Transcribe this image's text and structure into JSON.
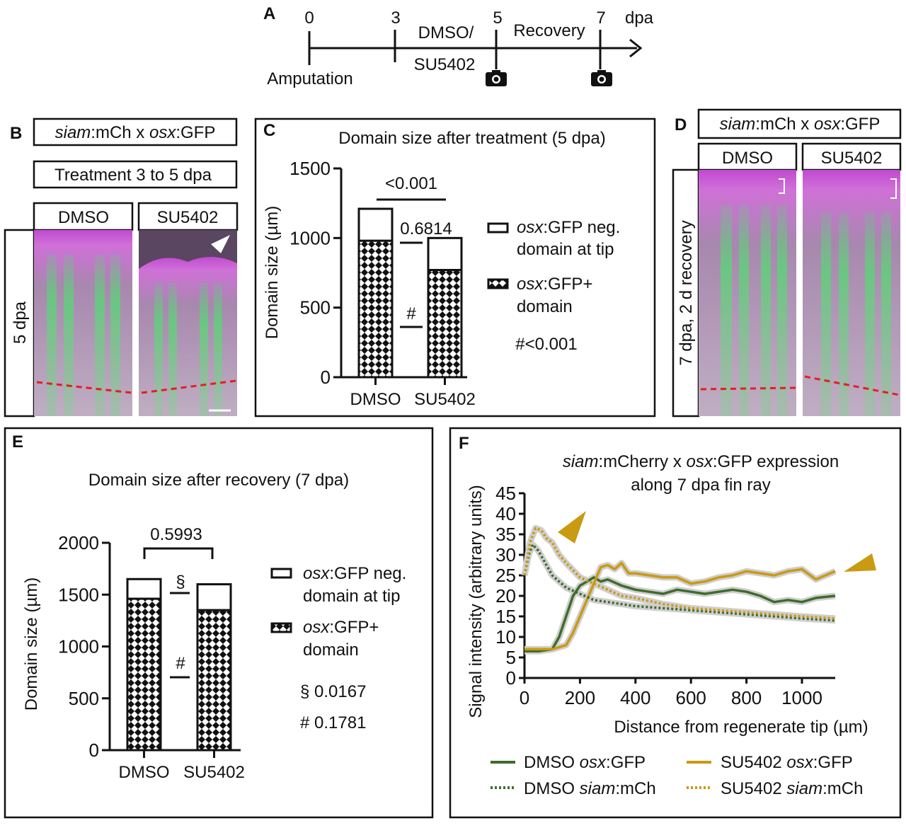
{
  "panelA": {
    "label": "A",
    "ticks": [
      "0",
      "3",
      "5",
      "7"
    ],
    "unit": "dpa",
    "treatment_line1": "DMSO/",
    "treatment_line2": "SU5402",
    "recovery": "Recovery",
    "amputation": "Amputation",
    "icons": [
      "camera-icon",
      "camera-icon"
    ]
  },
  "panelB": {
    "label": "B",
    "genotype": {
      "a": "siam",
      "b": ":mCh x ",
      "c": "osx",
      "d": ":GFP"
    },
    "treatment": "Treatment 3 to 5 dpa",
    "columns": [
      "DMSO",
      "SU5402"
    ],
    "row_label": "5 dpa"
  },
  "panelD": {
    "label": "D",
    "genotype": {
      "a": "siam",
      "b": ":mCh x ",
      "c": "osx",
      "d": ":GFP"
    },
    "columns": [
      "DMSO",
      "SU5402"
    ],
    "row_label": "7 dpa, 2 d recovery"
  },
  "colors": {
    "gfp_dmso": "#3f6b2c",
    "gfp_su": "#c99a12",
    "band": "#cfcfcf"
  },
  "chart_data": [
    {
      "id": "C",
      "label": "C",
      "type": "bar",
      "stacked": true,
      "title": "Domain size after treatment (5 dpa)",
      "ylabel": "Domain size (µm)",
      "ylim": [
        0,
        1500
      ],
      "yticks": [
        "0",
        "500",
        "1000",
        "1500"
      ],
      "categories": [
        "DMSO",
        "SU5402"
      ],
      "series": [
        {
          "name": "osx:GFP+ domain",
          "values": [
            980,
            770
          ]
        },
        {
          "name": "osx:GFP neg. domain at tip",
          "values": [
            230,
            230
          ]
        }
      ],
      "legend": [
        {
          "italic": "osx",
          "rest": ":GFP neg.",
          "line2": "domain at tip"
        },
        {
          "italic": "osx",
          "rest": ":GFP+",
          "line2": "domain"
        }
      ],
      "annotations": {
        "total_p": "<0.001",
        "neg_p": "0.6814",
        "hash": "#",
        "footnote": "#<0.001"
      }
    },
    {
      "id": "E",
      "label": "E",
      "type": "bar",
      "stacked": true,
      "title": "Domain size after recovery (7 dpa)",
      "ylabel": "Domain size (µm)",
      "ylim": [
        0,
        2000
      ],
      "yticks": [
        "0",
        "500",
        "1000",
        "1500",
        "2000"
      ],
      "categories": [
        "DMSO",
        "SU5402"
      ],
      "series": [
        {
          "name": "osx:GFP+ domain",
          "values": [
            1460,
            1350
          ]
        },
        {
          "name": "osx:GFP neg. domain at tip",
          "values": [
            190,
            250
          ]
        }
      ],
      "legend": [
        {
          "italic": "osx",
          "rest": ":GFP neg.",
          "line2": "domain at tip"
        },
        {
          "italic": "osx",
          "rest": ":GFP+",
          "line2": "domain"
        }
      ],
      "annotations": {
        "total_p": "0.5993",
        "section": "§",
        "hash": "#",
        "foot1": "§ 0.0167",
        "foot2": "# 0.1781"
      }
    },
    {
      "id": "F",
      "label": "F",
      "type": "line",
      "title_italic": "siam",
      "title_a": ":mCherry x ",
      "title_italic2": "osx",
      "title_b": ":GFP expression",
      "title_line2": "along 7 dpa fin ray",
      "xlabel": "Distance from regenerate tip (µm)",
      "ylabel": "Signal intensity (arbitrary units)",
      "xlim": [
        0,
        1120
      ],
      "ylim": [
        0,
        45
      ],
      "xticks": [
        "0",
        "200",
        "400",
        "600",
        "800",
        "1000"
      ],
      "yticks": [
        "0",
        "5",
        "10",
        "15",
        "20",
        "25",
        "30",
        "35",
        "40",
        "45"
      ],
      "series": [
        {
          "name": "DMSO osx:GFP",
          "legend_a": "DMSO ",
          "legend_i": "osx",
          "legend_b": ":GFP",
          "style": "solid",
          "color": "#3f6b2c",
          "x": [
            0,
            50,
            100,
            125,
            150,
            175,
            200,
            225,
            250,
            275,
            300,
            350,
            400,
            450,
            500,
            550,
            600,
            650,
            700,
            750,
            800,
            850,
            900,
            950,
            1000,
            1050,
            1120
          ],
          "y": [
            6.5,
            6.5,
            7,
            10,
            15,
            20,
            22.5,
            23.5,
            24.5,
            23.5,
            24,
            22.5,
            21.5,
            21,
            20.5,
            21.5,
            21,
            20.5,
            21,
            21.5,
            21,
            20,
            18.5,
            19,
            18.5,
            19.5,
            20
          ]
        },
        {
          "name": "SU5402 osx:GFP",
          "legend_a": "SU5402 ",
          "legend_i": "osx",
          "legend_b": ":GFP",
          "style": "solid",
          "color": "#c99a12",
          "x": [
            0,
            50,
            100,
            150,
            175,
            200,
            225,
            250,
            275,
            300,
            325,
            350,
            375,
            400,
            450,
            500,
            550,
            600,
            650,
            700,
            750,
            800,
            850,
            900,
            950,
            1000,
            1050,
            1120
          ],
          "y": [
            7,
            7,
            7,
            8,
            11,
            15,
            19,
            23,
            27,
            27.5,
            26.5,
            28,
            25.5,
            25.5,
            25,
            24.5,
            24.5,
            23,
            23.5,
            24.5,
            25,
            26,
            25.5,
            25,
            26,
            26.5,
            24,
            26
          ]
        },
        {
          "name": "DMSO siam:mCh",
          "legend_a": "DMSO ",
          "legend_i": "siam",
          "legend_b": ":mCh",
          "style": "dotted",
          "color": "#3f6b2c",
          "x": [
            0,
            15,
            30,
            50,
            75,
            100,
            150,
            200,
            250,
            300,
            400,
            500,
            600,
            700,
            800,
            900,
            1000,
            1120
          ],
          "y": [
            25,
            30,
            32.5,
            31,
            28,
            25,
            22,
            20.5,
            19,
            18.5,
            17.5,
            17,
            16.5,
            16,
            15.5,
            15,
            14.5,
            14
          ]
        },
        {
          "name": "SU5402 siam:mCh",
          "legend_a": "SU5402 ",
          "legend_i": "siam",
          "legend_b": ":mCh",
          "style": "dotted",
          "color": "#c99a12",
          "x": [
            0,
            20,
            40,
            60,
            80,
            100,
            125,
            150,
            200,
            250,
            300,
            350,
            400,
            500,
            600,
            700,
            800,
            900,
            1000,
            1120
          ],
          "y": [
            25,
            33,
            36.5,
            36,
            34,
            33,
            30,
            28,
            24.5,
            23,
            21.5,
            20,
            19.5,
            18,
            17,
            16.5,
            16,
            15.5,
            15,
            14.5
          ]
        }
      ],
      "legend_position": "bottom",
      "annotations": [
        "arrowhead at SU5402 siam:mCh peak",
        "arrowhead at SU5402 osx:GFP end"
      ]
    }
  ]
}
